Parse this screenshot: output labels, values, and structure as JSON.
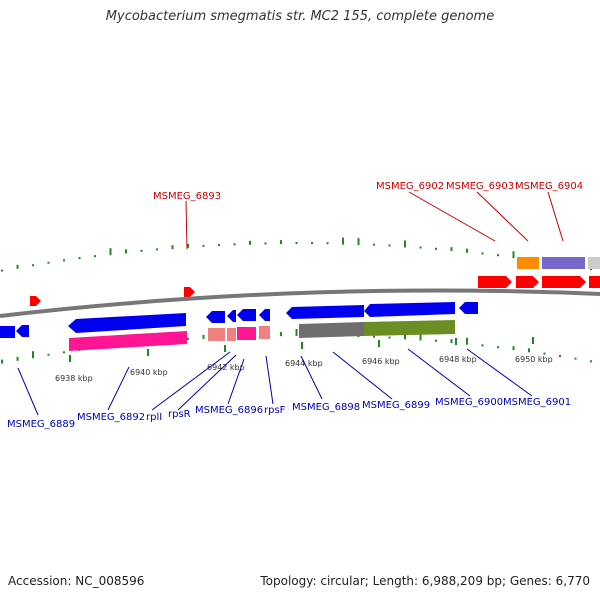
{
  "title": "Mycobacterium smegmatis str. MC2 155, complete genome",
  "footer": {
    "accession": "Accession: NC_008596",
    "summary": "Topology: circular; Length: 6,988,209 bp; Genes: 6,770"
  },
  "colors": {
    "backbone": "#777777",
    "forward_gene": "#ff0000",
    "reverse_gene": "#0000ee",
    "forward_label": "#cc0000",
    "reverse_label": "#0000bb",
    "gc_ticks": "#228822"
  },
  "scale_ticks": [
    "6938 kbp",
    "6940 kbp",
    "6942 kbp",
    "6944 kbp",
    "6946 kbp",
    "6948 kbp",
    "6950 kbp"
  ],
  "forward_genes": [
    "MSMEG_6893",
    "MSMEG_6902",
    "MSMEG_6903",
    "MSMEG_6904"
  ],
  "reverse_genes": [
    "MSMEG_6889",
    "MSMEG_6892",
    "rplI",
    "rpsR",
    "MSMEG_6896",
    "rpsF",
    "MSMEG_6898",
    "MSMEG_6899",
    "MSMEG_6900",
    "MSMEG_6901"
  ]
}
